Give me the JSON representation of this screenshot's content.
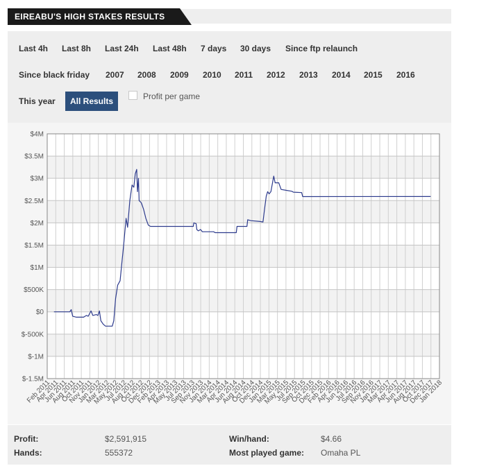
{
  "header": {
    "title": "EIREABU'S HIGH STAKES RESULTS"
  },
  "filters": {
    "row1": [
      "Last 4h",
      "Last 8h",
      "Last 24h",
      "Last 48h",
      "7 days",
      "30 days",
      "Since ftp relaunch"
    ],
    "row2": [
      "Since black friday",
      "2007",
      "2008",
      "2009",
      "2010",
      "2011",
      "2012",
      "2013",
      "2014",
      "2015",
      "2016"
    ],
    "row3": [
      "This year",
      "All Results"
    ],
    "active": "All Results",
    "profit_per_game_label": "Profit per game"
  },
  "chart_data": {
    "type": "line",
    "series": [
      {
        "color": "#2c3a8c",
        "points": [
          [
            "2011-02-15",
            0
          ],
          [
            "2011-06-01",
            0
          ],
          [
            "2011-06-10",
            50000
          ],
          [
            "2011-06-20",
            -100000
          ],
          [
            "2011-07-15",
            -120000
          ],
          [
            "2011-09-01",
            -120000
          ],
          [
            "2011-09-10",
            -100000
          ],
          [
            "2011-09-20",
            -80000
          ],
          [
            "2011-10-01",
            -100000
          ],
          [
            "2011-10-20",
            20000
          ],
          [
            "2011-11-01",
            -80000
          ],
          [
            "2011-11-25",
            -60000
          ],
          [
            "2011-12-05",
            -80000
          ],
          [
            "2011-12-15",
            20000
          ],
          [
            "2011-12-25",
            -200000
          ],
          [
            "2012-01-10",
            -280000
          ],
          [
            "2012-01-25",
            -320000
          ],
          [
            "2012-03-10",
            -320000
          ],
          [
            "2012-03-20",
            -200000
          ],
          [
            "2012-04-01",
            300000
          ],
          [
            "2012-04-15",
            600000
          ],
          [
            "2012-05-01",
            700000
          ],
          [
            "2012-05-10",
            1000000
          ],
          [
            "2012-05-25",
            1500000
          ],
          [
            "2012-06-10",
            2100000
          ],
          [
            "2012-06-20",
            1900000
          ],
          [
            "2012-07-05",
            2500000
          ],
          [
            "2012-07-20",
            2850000
          ],
          [
            "2012-08-01",
            2800000
          ],
          [
            "2012-08-10",
            3100000
          ],
          [
            "2012-08-20",
            3200000
          ],
          [
            "2012-08-25",
            2700000
          ],
          [
            "2012-09-01",
            3000000
          ],
          [
            "2012-09-05",
            2500000
          ],
          [
            "2012-09-20",
            2450000
          ],
          [
            "2012-10-05",
            2300000
          ],
          [
            "2012-10-20",
            2100000
          ],
          [
            "2012-11-05",
            1950000
          ],
          [
            "2012-11-20",
            1920000
          ],
          [
            "2013-09-01",
            1920000
          ],
          [
            "2013-09-05",
            2000000
          ],
          [
            "2013-09-20",
            1980000
          ],
          [
            "2013-09-25",
            1850000
          ],
          [
            "2013-10-05",
            1820000
          ],
          [
            "2013-10-20",
            1850000
          ],
          [
            "2013-11-01",
            1800000
          ],
          [
            "2014-01-15",
            1800000
          ],
          [
            "2014-01-25",
            1780000
          ],
          [
            "2014-06-15",
            1780000
          ],
          [
            "2014-06-20",
            1920000
          ],
          [
            "2014-08-25",
            1920000
          ],
          [
            "2014-08-30",
            2070000
          ],
          [
            "2014-09-20",
            2050000
          ],
          [
            "2014-11-20",
            2030000
          ],
          [
            "2014-12-10",
            2020000
          ],
          [
            "2014-12-20",
            2300000
          ],
          [
            "2015-01-01",
            2600000
          ],
          [
            "2015-01-10",
            2700000
          ],
          [
            "2015-01-20",
            2650000
          ],
          [
            "2015-02-01",
            2700000
          ],
          [
            "2015-02-20",
            3050000
          ],
          [
            "2015-03-01",
            2900000
          ],
          [
            "2015-03-25",
            2900000
          ],
          [
            "2015-04-10",
            2750000
          ],
          [
            "2015-05-15",
            2730000
          ],
          [
            "2015-06-20",
            2710000
          ],
          [
            "2015-07-01",
            2690000
          ],
          [
            "2015-08-25",
            2680000
          ],
          [
            "2015-09-01",
            2590000
          ],
          [
            "2018-01-01",
            2592000
          ]
        ]
      }
    ],
    "xlim": [
      "2011-01-01",
      "2018-03-01"
    ],
    "ylim": [
      -1500000,
      4000000
    ],
    "y_ticks": [
      {
        "value": 4000000,
        "label": "$4M"
      },
      {
        "value": 3500000,
        "label": "$3.5M"
      },
      {
        "value": 3000000,
        "label": "$3M"
      },
      {
        "value": 2500000,
        "label": "$2.5M"
      },
      {
        "value": 2000000,
        "label": "$2M"
      },
      {
        "value": 1500000,
        "label": "$1.5M"
      },
      {
        "value": 1000000,
        "label": "$1M"
      },
      {
        "value": 500000,
        "label": "$500K"
      },
      {
        "value": 0,
        "label": "$0"
      },
      {
        "value": -500000,
        "label": "$-500K"
      },
      {
        "value": -1000000,
        "label": "$-1M"
      },
      {
        "value": -1500000,
        "label": "$-1.5M"
      }
    ],
    "x_ticks": [
      "Feb 2011",
      "Apr 2011",
      "Jun 2011",
      "Aug 2011",
      "Oct 2011",
      "Nov 2011",
      "Jan 2012",
      "Mar 2012",
      "May 2012",
      "Jul 2012",
      "Aug 2012",
      "Oct 2012",
      "Dec 2012",
      "Feb 2013",
      "Apr 2013",
      "May 2013",
      "Jul 2013",
      "Sep 2013",
      "Nov 2013",
      "Jan 2014",
      "Mar 2014",
      "Apr 2014",
      "Jun 2014",
      "Aug 2014",
      "Oct 2014",
      "Dec 2014",
      "Jan 2015",
      "Mar 2015",
      "May 2015",
      "Jul 2015",
      "Sep 2015",
      "Oct 2015",
      "Dec 2015",
      "Feb 2016",
      "Apr 2016",
      "Jun 2016",
      "Jul 2016",
      "Sep 2016",
      "Nov 2016",
      "Jan 2017",
      "Mar 2017",
      "Apr 2017",
      "Jun 2017",
      "Aug 2017",
      "Oct 2017",
      "Dec 2017",
      "Jan 2018"
    ],
    "grid": true,
    "legend": "none"
  },
  "stats": {
    "profit_label": "Profit:",
    "profit_value": "$2,591,915",
    "hands_label": "Hands:",
    "hands_value": "555372",
    "winhand_label": "Win/hand:",
    "winhand_value": "$4.66",
    "game_label": "Most played game:",
    "game_value": "Omaha PL"
  }
}
